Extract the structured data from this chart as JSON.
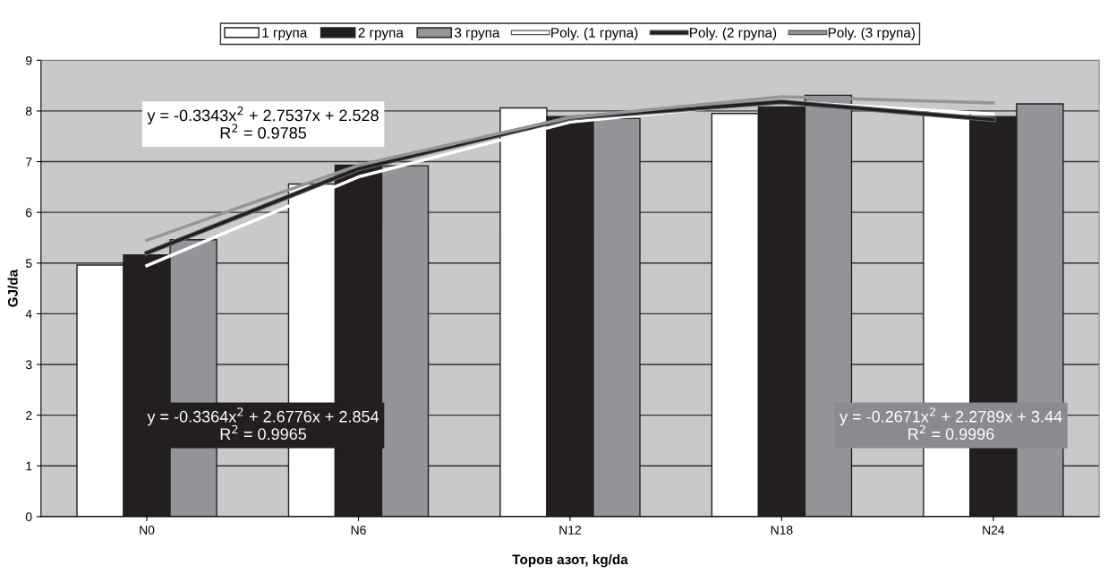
{
  "chart_data": {
    "type": "bar",
    "xlabel": "Торов азот, kg/da",
    "ylabel": "GJ/da",
    "categories": [
      "N0",
      "N6",
      "N12",
      "N18",
      "N24"
    ],
    "series": [
      {
        "name": "1 група",
        "color": "#ffffff",
        "values": [
          4.96,
          6.56,
          8.06,
          7.95,
          7.99
        ]
      },
      {
        "name": "2 група",
        "color": "#231f20",
        "values": [
          5.16,
          6.93,
          7.89,
          8.08,
          7.89
        ]
      },
      {
        "name": "3 група",
        "color": "#939598",
        "values": [
          5.46,
          6.92,
          7.85,
          8.31,
          8.14
        ]
      },
      {
        "name": "Poly. (1 група)",
        "type": "line",
        "color": "#ffffff",
        "values": [
          4.95,
          6.7,
          7.78,
          8.19,
          7.94
        ]
      },
      {
        "name": "Poly. (2 група)",
        "type": "line",
        "color": "#231f20",
        "values": [
          5.2,
          6.86,
          7.86,
          8.18,
          7.83
        ]
      },
      {
        "name": "Poly. (3 група)",
        "type": "line",
        "color": "#939598",
        "values": [
          5.45,
          6.93,
          7.87,
          8.28,
          8.16
        ]
      }
    ],
    "annotations": [
      "y = -0.3343x$^{2}$ + 2.7537x + 2.528\nR$^{2}$ = 0.9785",
      "y = -0.3364x$^{2}$ + 2.6776x + 2.854\nR$^{2}$ = 0.9965",
      "y = -0.2671x$^{2}$ + 2.2789x + 3.44\nR$^{2}$ = 0.9996"
    ],
    "ylim": [
      0,
      9
    ],
    "yticks": [
      0,
      1,
      2,
      3,
      4,
      5,
      6,
      7,
      8,
      9
    ],
    "grid": "y",
    "legend": "top"
  }
}
